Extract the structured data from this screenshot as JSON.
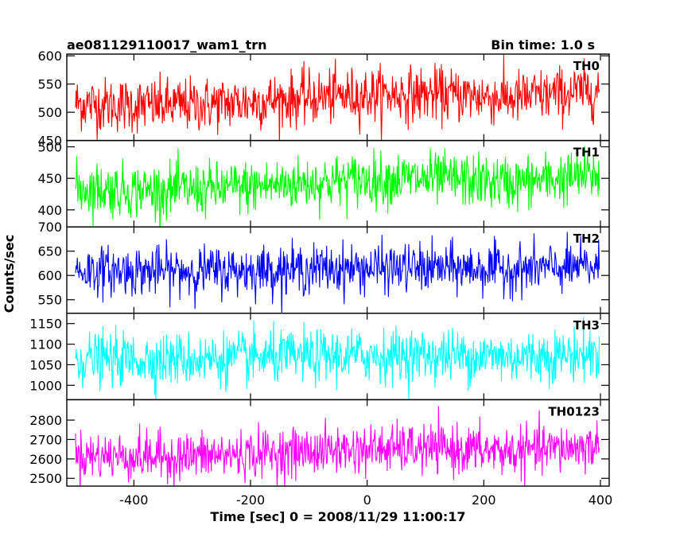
{
  "header": {
    "title": "ae081129110017_wam1_trn",
    "bin_time": "Bin time: 1.0 s"
  },
  "chart_data": {
    "type": "line",
    "xlabel": "Time [sec] 0 = 2008/11/29 11:00:17",
    "ylabel": "Counts/sec",
    "xlim": [
      -515,
      415
    ],
    "xticks": [
      -400,
      -200,
      0,
      200,
      400
    ],
    "panels": [
      {
        "name": "TH0",
        "color": "#ff0000",
        "ylim": [
          450,
          603
        ],
        "yticks": [
          450,
          500,
          550,
          600
        ],
        "mean": 522,
        "std": 24,
        "trend": 10,
        "points": 900
      },
      {
        "name": "TH1",
        "color": "#00ff00",
        "ylim": [
          373,
          510
        ],
        "yticks": [
          400,
          450,
          500
        ],
        "mean": 440,
        "std": 21,
        "trend": 9,
        "points": 900
      },
      {
        "name": "TH2",
        "color": "#0000ff",
        "ylim": [
          522,
          700
        ],
        "yticks": [
          550,
          600,
          650,
          700
        ],
        "mean": 612,
        "std": 25,
        "trend": 3,
        "points": 900
      },
      {
        "name": "TH3",
        "color": "#00ffff",
        "ylim": [
          965,
          1175
        ],
        "yticks": [
          1000,
          1050,
          1100,
          1150
        ],
        "mean": 1068,
        "std": 32,
        "trend": 5,
        "points": 900
      },
      {
        "name": "TH0123",
        "color": "#ff00ff",
        "ylim": [
          2460,
          2905
        ],
        "yticks": [
          2500,
          2600,
          2700,
          2800
        ],
        "mean": 2632,
        "std": 62,
        "trend": 20,
        "points": 900
      }
    ]
  }
}
